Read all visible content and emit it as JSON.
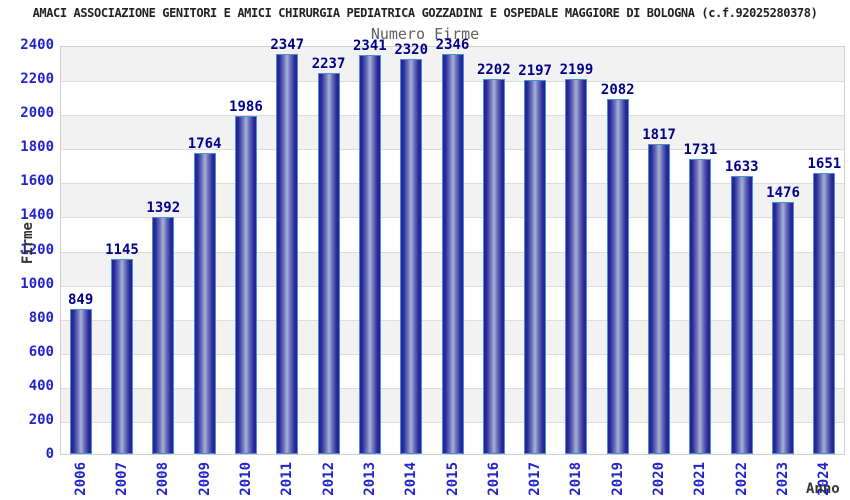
{
  "header": {
    "title": "AMACI ASSOCIAZIONE GENITORI E AMICI CHIRURGIA PEDIATRICA GOZZADINI E OSPEDALE MAGGIORE DI BOLOGNA (c.f.92025280378)"
  },
  "chart_data": {
    "type": "bar",
    "title": "Numero Firme",
    "xlabel": "Anno",
    "ylabel": "Firme",
    "categories": [
      "2006",
      "2007",
      "2008",
      "2009",
      "2010",
      "2011",
      "2012",
      "2013",
      "2014",
      "2015",
      "2016",
      "2017",
      "2018",
      "2019",
      "2020",
      "2021",
      "2022",
      "2023",
      "2024"
    ],
    "values": [
      849,
      1145,
      1392,
      1764,
      1986,
      2347,
      2237,
      2341,
      2320,
      2346,
      2202,
      2197,
      2199,
      2082,
      1817,
      1731,
      1633,
      1476,
      1651
    ],
    "y_ticks": [
      0,
      200,
      400,
      600,
      800,
      1000,
      1200,
      1400,
      1600,
      1800,
      2000,
      2200,
      2400
    ],
    "ylim": [
      0,
      2400
    ],
    "grid": "horizontal, alternating shaded bands every 200",
    "legend": "none",
    "colors": {
      "tick_label_blue": "#2323cc",
      "value_label_navy": "#00008b",
      "bar_border_blue": "#4a8fd3",
      "bar_dark_navy": "#232394",
      "bar_center_light": "#aab0d8",
      "band_gray": "#f2f2f2",
      "gridline_gray": "#dcdcdc",
      "chart_title_gray": "#606060",
      "axis_title_dark": "#333333"
    }
  }
}
